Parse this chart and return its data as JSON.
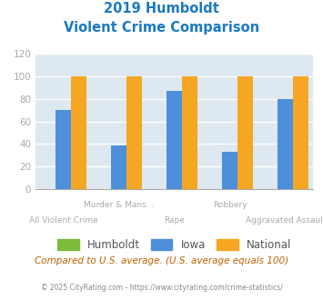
{
  "title_line1": "2019 Humboldt",
  "title_line2": "Violent Crime Comparison",
  "categories": [
    "All Violent Crime",
    "Murder & Mans...",
    "Rape",
    "Robbery",
    "Aggravated Assault"
  ],
  "subcategories": [
    "Humboldt",
    "Iowa",
    "National"
  ],
  "values": {
    "Humboldt": [
      0,
      0,
      0,
      0,
      0
    ],
    "Iowa": [
      70,
      39,
      87,
      33,
      80
    ],
    "National": [
      100,
      100,
      100,
      100,
      100
    ]
  },
  "colors": {
    "Humboldt": "#7cba3c",
    "Iowa": "#4d8fdb",
    "National": "#f5a623"
  },
  "ylim": [
    0,
    120
  ],
  "yticks": [
    0,
    20,
    40,
    60,
    80,
    100,
    120
  ],
  "plot_bg": "#dde8f0",
  "fig_bg": "#ffffff",
  "title_color": "#1a7abf",
  "footnote1": "Compared to U.S. average. (U.S. average equals 100)",
  "footnote2": "© 2025 CityRating.com - https://www.cityrating.com/crime-statistics/",
  "footnote1_color": "#c06000",
  "footnote2_color": "#888888",
  "grid_color": "#ffffff",
  "tick_color": "#aaaaaa",
  "bar_width": 0.28,
  "group_positions": [
    1,
    2,
    3,
    4,
    5
  ]
}
